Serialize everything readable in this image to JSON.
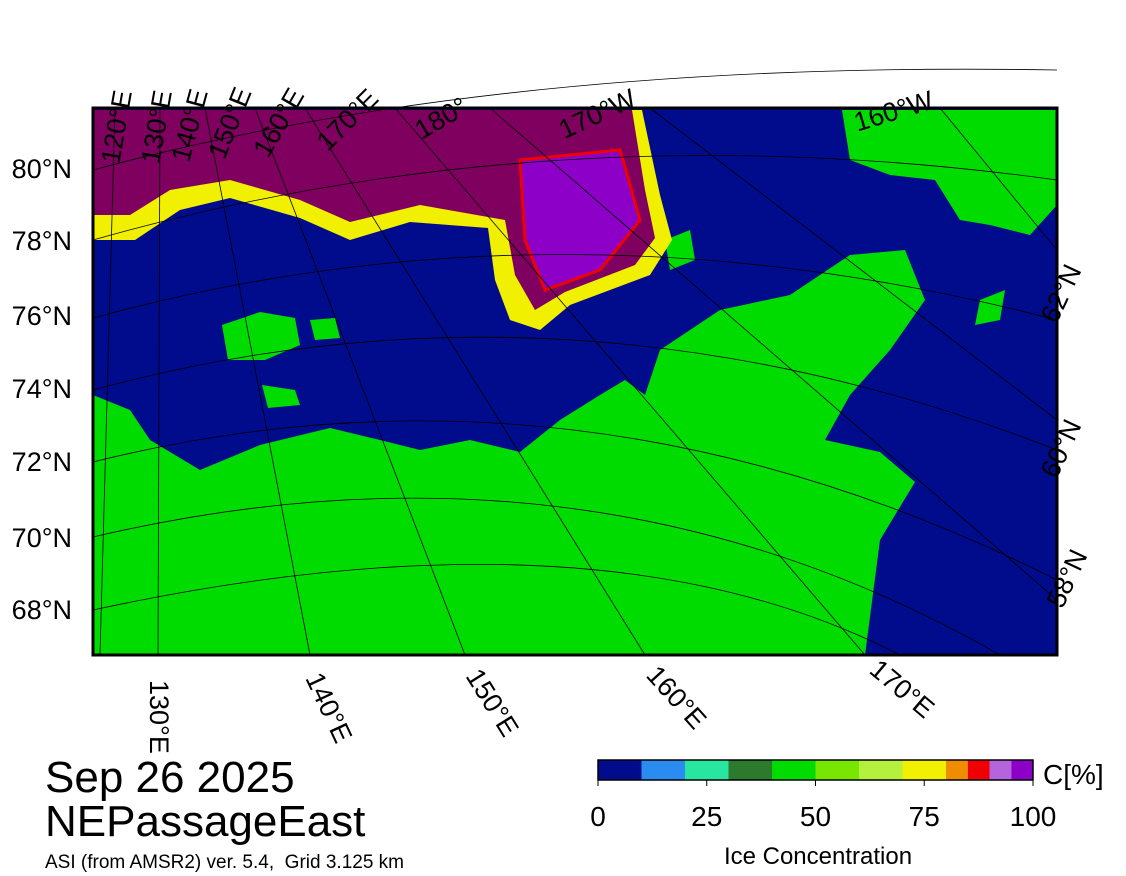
{
  "map": {
    "left_lat_labels": [
      "80°N",
      "78°N",
      "76°N",
      "74°N",
      "72°N",
      "70°N",
      "68°N"
    ],
    "right_lat_labels": [
      "62°N",
      "60°N",
      "58°N"
    ],
    "top_lon_labels": [
      "120°E",
      "130°E",
      "140°E",
      "150°E",
      "160°E",
      "170°E",
      "180°",
      "170°W",
      "160°W"
    ],
    "bottom_lon_labels": [
      "130°E",
      "140°E",
      "150°E",
      "160°E",
      "170°E"
    ]
  },
  "date": "Sep 26 2025",
  "region": "NEPassageEast",
  "source": "ASI (from AMSR2) ver. 5.4,  Grid 3.125 km",
  "colorbar": {
    "unit_label": "C[%]",
    "title": "Ice Concentration",
    "lim": [
      0,
      100
    ],
    "bounds": [
      0,
      10,
      20,
      30,
      40,
      50,
      60,
      70,
      80,
      85,
      90,
      95,
      100
    ],
    "colors": [
      "#000c8c",
      "#2a8cf0",
      "#28e6a0",
      "#2c7a2c",
      "#00dc00",
      "#78e600",
      "#b4f03c",
      "#f0f000",
      "#f08c00",
      "#f00000",
      "#b464dc",
      "#8c00c8"
    ],
    "ticks": [
      0,
      25,
      50,
      75,
      100
    ]
  }
}
